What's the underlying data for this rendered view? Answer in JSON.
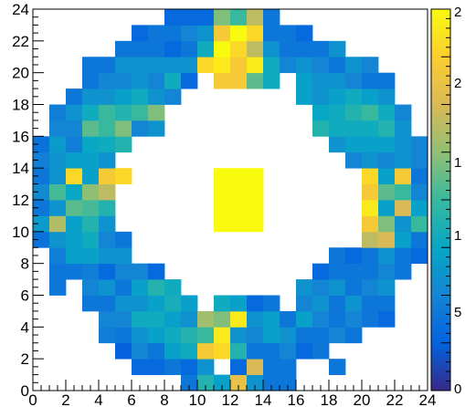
{
  "chart_data": {
    "type": "heatmap",
    "title": "",
    "xlabel": "",
    "ylabel": "",
    "xlim": [
      0,
      24
    ],
    "ylim": [
      0,
      24
    ],
    "bin_width": 1,
    "x_ticks": [
      "0",
      "2",
      "4",
      "6",
      "8",
      "10",
      "12",
      "14",
      "16",
      "18",
      "20",
      "22",
      "24"
    ],
    "y_ticks": [
      "0",
      "2",
      "4",
      "6",
      "8",
      "10",
      "12",
      "14",
      "16",
      "18",
      "20",
      "22",
      "24"
    ],
    "palette_labels": [
      "2",
      "2",
      "1",
      "1",
      "5",
      "0"
    ],
    "palette_colors": [
      "#352a87",
      "#0363e1",
      "#1485d4",
      "#06a7c6",
      "#38b99e",
      "#92bf73",
      "#d9ba56",
      "#fcce2e",
      "#f9fb0e"
    ],
    "zmax_note": "colour scale normalized 0-1",
    "cells": [
      [
        0,
        9,
        0.18
      ],
      [
        0,
        10,
        0.33
      ],
      [
        0,
        11,
        0.2
      ],
      [
        0,
        12,
        0.27
      ],
      [
        0,
        13,
        0.2
      ],
      [
        0,
        14,
        0.23
      ],
      [
        0,
        15,
        0.18
      ],
      [
        1,
        6,
        0.2
      ],
      [
        1,
        7,
        0.2
      ],
      [
        1,
        8,
        0.22
      ],
      [
        1,
        9,
        0.3
      ],
      [
        1,
        10,
        0.68
      ],
      [
        1,
        11,
        0.3
      ],
      [
        1,
        12,
        0.52
      ],
      [
        1,
        13,
        0.3
      ],
      [
        1,
        14,
        0.3
      ],
      [
        1,
        15,
        0.33
      ],
      [
        1,
        16,
        0.25
      ],
      [
        1,
        17,
        0.22
      ],
      [
        2,
        7,
        0.2
      ],
      [
        2,
        8,
        0.35
      ],
      [
        2,
        9,
        0.35
      ],
      [
        2,
        10,
        0.35
      ],
      [
        2,
        11,
        0.55
      ],
      [
        2,
        12,
        0.38
      ],
      [
        2,
        13,
        0.9
      ],
      [
        2,
        14,
        0.35
      ],
      [
        2,
        15,
        0.22
      ],
      [
        2,
        16,
        0.25
      ],
      [
        2,
        17,
        0.3
      ],
      [
        2,
        18,
        0.2
      ],
      [
        3,
        5,
        0.2
      ],
      [
        3,
        6,
        0.25
      ],
      [
        3,
        7,
        0.22
      ],
      [
        3,
        8,
        0.35
      ],
      [
        3,
        9,
        0.4
      ],
      [
        3,
        10,
        0.45
      ],
      [
        3,
        11,
        0.52
      ],
      [
        3,
        12,
        0.62
      ],
      [
        3,
        13,
        0.35
      ],
      [
        3,
        14,
        0.35
      ],
      [
        3,
        15,
        0.38
      ],
      [
        3,
        16,
        0.55
      ],
      [
        3,
        17,
        0.4
      ],
      [
        3,
        18,
        0.3
      ],
      [
        3,
        19,
        0.2
      ],
      [
        3,
        20,
        0.2
      ],
      [
        4,
        3,
        0.22
      ],
      [
        4,
        4,
        0.25
      ],
      [
        4,
        5,
        0.2
      ],
      [
        4,
        6,
        0.3
      ],
      [
        4,
        7,
        0.15
      ],
      [
        4,
        8,
        0.3
      ],
      [
        4,
        9,
        0.25
      ],
      [
        4,
        10,
        0.3
      ],
      [
        4,
        11,
        0.45
      ],
      [
        4,
        12,
        0.7
      ],
      [
        4,
        13,
        0.85
      ],
      [
        4,
        14,
        0.3
      ],
      [
        4,
        15,
        0.4
      ],
      [
        4,
        16,
        0.5
      ],
      [
        4,
        17,
        0.5
      ],
      [
        4,
        18,
        0.3
      ],
      [
        4,
        19,
        0.25
      ],
      [
        4,
        20,
        0.2
      ],
      [
        5,
        2,
        0.12
      ],
      [
        5,
        3,
        0.2
      ],
      [
        5,
        4,
        0.25
      ],
      [
        5,
        5,
        0.3
      ],
      [
        5,
        6,
        0.2
      ],
      [
        5,
        7,
        0.25
      ],
      [
        5,
        8,
        0.3
      ],
      [
        5,
        9,
        0.2
      ],
      [
        5,
        13,
        0.9
      ],
      [
        5,
        15,
        0.45
      ],
      [
        5,
        16,
        0.6
      ],
      [
        5,
        17,
        0.45
      ],
      [
        5,
        18,
        0.35
      ],
      [
        5,
        19,
        0.25
      ],
      [
        5,
        20,
        0.3
      ],
      [
        5,
        21,
        0.2
      ],
      [
        6,
        1,
        0.15
      ],
      [
        6,
        2,
        0.25
      ],
      [
        6,
        3,
        0.3
      ],
      [
        6,
        4,
        0.4
      ],
      [
        6,
        5,
        0.3
      ],
      [
        6,
        6,
        0.35
      ],
      [
        6,
        7,
        0.25
      ],
      [
        6,
        16,
        0.25
      ],
      [
        6,
        17,
        0.5
      ],
      [
        6,
        18,
        0.4
      ],
      [
        6,
        19,
        0.3
      ],
      [
        6,
        20,
        0.3
      ],
      [
        6,
        21,
        0.2
      ],
      [
        6,
        22,
        0.15
      ],
      [
        7,
        1,
        0.15
      ],
      [
        7,
        2,
        0.2
      ],
      [
        7,
        3,
        0.35
      ],
      [
        7,
        4,
        0.4
      ],
      [
        7,
        5,
        0.35
      ],
      [
        7,
        6,
        0.45
      ],
      [
        7,
        7,
        0.15
      ],
      [
        7,
        16,
        0.3
      ],
      [
        7,
        17,
        0.6
      ],
      [
        7,
        18,
        0.3
      ],
      [
        7,
        19,
        0.25
      ],
      [
        7,
        20,
        0.3
      ],
      [
        7,
        21,
        0.2
      ],
      [
        7,
        22,
        0.2
      ],
      [
        8,
        1,
        0.2
      ],
      [
        8,
        2,
        0.35
      ],
      [
        8,
        3,
        0.4
      ],
      [
        8,
        4,
        0.35
      ],
      [
        8,
        5,
        0.42
      ],
      [
        8,
        6,
        0.4
      ],
      [
        8,
        18,
        0.25
      ],
      [
        8,
        19,
        0.4
      ],
      [
        8,
        20,
        0.3
      ],
      [
        8,
        21,
        0.15
      ],
      [
        8,
        22,
        0.2
      ],
      [
        8,
        23,
        0.15
      ],
      [
        9,
        0,
        0.2
      ],
      [
        9,
        1,
        0.15
      ],
      [
        9,
        2,
        0.4
      ],
      [
        9,
        3,
        0.45
      ],
      [
        9,
        4,
        0.3
      ],
      [
        9,
        5,
        0.35
      ],
      [
        9,
        19,
        0.15
      ],
      [
        9,
        20,
        0.3
      ],
      [
        9,
        21,
        0.2
      ],
      [
        9,
        22,
        0.25
      ],
      [
        9,
        23,
        0.15
      ],
      [
        10,
        0,
        0.45
      ],
      [
        10,
        1,
        0.3
      ],
      [
        10,
        2,
        0.85
      ],
      [
        10,
        3,
        0.5
      ],
      [
        10,
        4,
        0.65
      ],
      [
        10,
        20,
        0.9
      ],
      [
        10,
        21,
        0.4
      ],
      [
        10,
        22,
        0.3
      ],
      [
        10,
        23,
        0.15
      ],
      [
        11,
        0,
        0.35
      ],
      [
        11,
        2,
        0.9
      ],
      [
        11,
        3,
        0.95
      ],
      [
        11,
        4,
        0.6
      ],
      [
        11,
        5,
        0.4
      ],
      [
        11,
        10,
        1.0
      ],
      [
        11,
        11,
        1.0
      ],
      [
        11,
        12,
        1.0
      ],
      [
        11,
        13,
        1.0
      ],
      [
        11,
        19,
        0.85
      ],
      [
        11,
        20,
        0.95
      ],
      [
        11,
        21,
        1.0
      ],
      [
        11,
        22,
        0.85
      ],
      [
        11,
        23,
        0.6
      ],
      [
        12,
        0,
        0.8
      ],
      [
        12,
        1,
        0.15
      ],
      [
        12,
        2,
        0.45
      ],
      [
        12,
        3,
        0.3
      ],
      [
        12,
        4,
        0.95
      ],
      [
        12,
        5,
        0.35
      ],
      [
        12,
        10,
        1.0
      ],
      [
        12,
        11,
        1.0
      ],
      [
        12,
        12,
        1.0
      ],
      [
        12,
        13,
        1.0
      ],
      [
        12,
        19,
        0.85
      ],
      [
        12,
        20,
        0.85
      ],
      [
        12,
        21,
        0.9
      ],
      [
        12,
        22,
        1.0
      ],
      [
        12,
        23,
        0.5
      ],
      [
        13,
        0,
        0.3
      ],
      [
        13,
        1,
        0.75
      ],
      [
        13,
        2,
        0.2
      ],
      [
        13,
        3,
        0.25
      ],
      [
        13,
        4,
        0.3
      ],
      [
        13,
        5,
        0.15
      ],
      [
        13,
        10,
        1.0
      ],
      [
        13,
        11,
        1.0
      ],
      [
        13,
        12,
        1.0
      ],
      [
        13,
        13,
        1.0
      ],
      [
        13,
        19,
        0.55
      ],
      [
        13,
        20,
        0.95
      ],
      [
        13,
        21,
        0.7
      ],
      [
        13,
        22,
        0.9
      ],
      [
        13,
        23,
        0.7
      ],
      [
        14,
        0,
        0.2
      ],
      [
        14,
        1,
        0.2
      ],
      [
        14,
        2,
        0.2
      ],
      [
        14,
        3,
        0.35
      ],
      [
        14,
        4,
        0.35
      ],
      [
        14,
        5,
        0.2
      ],
      [
        14,
        19,
        0.4
      ],
      [
        14,
        20,
        0.4
      ],
      [
        14,
        21,
        0.3
      ],
      [
        14,
        22,
        0.2
      ],
      [
        14,
        23,
        0.2
      ],
      [
        15,
        0,
        0.2
      ],
      [
        15,
        1,
        0.2
      ],
      [
        15,
        2,
        0.25
      ],
      [
        15,
        3,
        0.3
      ],
      [
        15,
        4,
        0.2
      ],
      [
        15,
        20,
        0.25
      ],
      [
        15,
        21,
        0.2
      ],
      [
        15,
        22,
        0.2
      ],
      [
        16,
        2,
        0.15
      ],
      [
        16,
        3,
        0.2
      ],
      [
        16,
        4,
        0.35
      ],
      [
        16,
        5,
        0.25
      ],
      [
        16,
        6,
        0.3
      ],
      [
        16,
        18,
        0.35
      ],
      [
        16,
        19,
        0.35
      ],
      [
        16,
        20,
        0.3
      ],
      [
        16,
        21,
        0.2
      ],
      [
        16,
        22,
        0.15
      ],
      [
        17,
        2,
        0.2
      ],
      [
        17,
        3,
        0.2
      ],
      [
        17,
        4,
        0.25
      ],
      [
        17,
        5,
        0.3
      ],
      [
        17,
        6,
        0.25
      ],
      [
        17,
        7,
        0.15
      ],
      [
        17,
        16,
        0.45
      ],
      [
        17,
        17,
        0.38
      ],
      [
        17,
        18,
        0.3
      ],
      [
        17,
        19,
        0.3
      ],
      [
        17,
        20,
        0.25
      ],
      [
        17,
        21,
        0.2
      ],
      [
        18,
        1,
        0.2
      ],
      [
        18,
        3,
        0.25
      ],
      [
        18,
        4,
        0.2
      ],
      [
        18,
        5,
        0.2
      ],
      [
        18,
        6,
        0.3
      ],
      [
        18,
        7,
        0.2
      ],
      [
        18,
        8,
        0.2
      ],
      [
        18,
        15,
        0.3
      ],
      [
        18,
        16,
        0.4
      ],
      [
        18,
        17,
        0.4
      ],
      [
        18,
        18,
        0.35
      ],
      [
        18,
        19,
        0.3
      ],
      [
        18,
        20,
        0.2
      ],
      [
        18,
        21,
        0.3
      ],
      [
        19,
        3,
        0.2
      ],
      [
        19,
        4,
        0.25
      ],
      [
        19,
        5,
        0.3
      ],
      [
        19,
        6,
        0.2
      ],
      [
        19,
        7,
        0.2
      ],
      [
        19,
        8,
        0.15
      ],
      [
        19,
        14,
        0.25
      ],
      [
        19,
        15,
        0.35
      ],
      [
        19,
        16,
        0.4
      ],
      [
        19,
        17,
        0.45
      ],
      [
        19,
        18,
        0.4
      ],
      [
        19,
        19,
        0.25
      ],
      [
        19,
        20,
        0.3
      ],
      [
        20,
        4,
        0.2
      ],
      [
        20,
        5,
        0.2
      ],
      [
        20,
        6,
        0.25
      ],
      [
        20,
        7,
        0.2
      ],
      [
        20,
        8,
        0.2
      ],
      [
        20,
        9,
        0.7
      ],
      [
        20,
        10,
        0.85
      ],
      [
        20,
        11,
        0.95
      ],
      [
        20,
        12,
        0.85
      ],
      [
        20,
        13,
        0.9
      ],
      [
        20,
        14,
        0.3
      ],
      [
        20,
        15,
        0.35
      ],
      [
        20,
        16,
        0.4
      ],
      [
        20,
        17,
        0.5
      ],
      [
        20,
        18,
        0.35
      ],
      [
        20,
        19,
        0.2
      ],
      [
        20,
        20,
        0.25
      ],
      [
        21,
        4,
        0.15
      ],
      [
        21,
        5,
        0.2
      ],
      [
        21,
        6,
        0.3
      ],
      [
        21,
        7,
        0.25
      ],
      [
        21,
        8,
        0.3
      ],
      [
        21,
        9,
        0.75
      ],
      [
        21,
        10,
        0.6
      ],
      [
        21,
        11,
        0.35
      ],
      [
        21,
        12,
        0.55
      ],
      [
        21,
        13,
        0.35
      ],
      [
        21,
        14,
        0.25
      ],
      [
        21,
        15,
        0.35
      ],
      [
        21,
        16,
        0.45
      ],
      [
        21,
        17,
        0.4
      ],
      [
        21,
        18,
        0.3
      ],
      [
        21,
        19,
        0.2
      ],
      [
        22,
        7,
        0.2
      ],
      [
        22,
        8,
        0.2
      ],
      [
        22,
        9,
        0.35
      ],
      [
        22,
        10,
        0.3
      ],
      [
        22,
        11,
        0.75
      ],
      [
        22,
        12,
        0.5
      ],
      [
        22,
        13,
        0.85
      ],
      [
        22,
        14,
        0.3
      ],
      [
        22,
        15,
        0.3
      ],
      [
        22,
        16,
        0.3
      ],
      [
        22,
        17,
        0.25
      ],
      [
        23,
        8,
        0.15
      ],
      [
        23,
        9,
        0.2
      ],
      [
        23,
        10,
        0.5
      ],
      [
        23,
        11,
        0.35
      ],
      [
        23,
        12,
        0.25
      ],
      [
        23,
        13,
        0.2
      ],
      [
        23,
        14,
        0.25
      ],
      [
        23,
        15,
        0.25
      ]
    ]
  }
}
